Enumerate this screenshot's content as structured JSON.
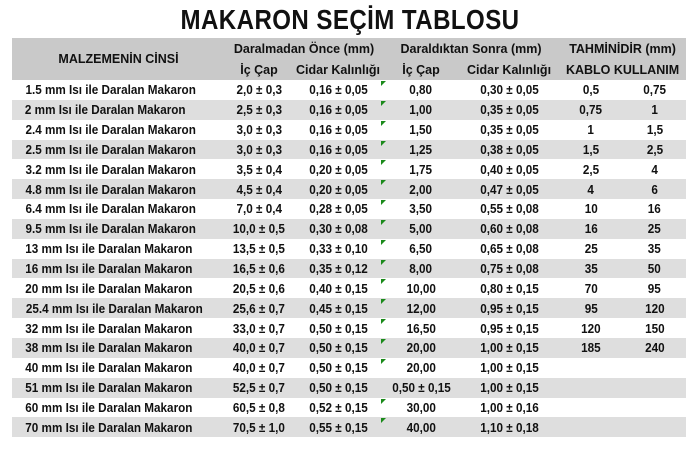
{
  "title": "MAKARON SEÇİM TABLOSU",
  "header": {
    "material": "MALZEMENİN CİNSİ",
    "before": "Daralmadan Önce (mm)",
    "after": "Daraldıktan Sonra (mm)",
    "estimate": "TAHMİNİDİR (mm)",
    "inner": "İç Çap",
    "wall": "Cidar Kalınlığı",
    "inner2": "İç Çap",
    "wall2": "Cidar Kalınlığı",
    "cable_usage": "KABLO KULLANIM"
  },
  "colors": {
    "header_bg": "#c9c9c9",
    "stripe_bg": "#dedede",
    "marker": "#1a8a1a"
  },
  "rows": [
    [
      "1.5 mm Isı ile Daralan Makaron",
      "2,0 ± 0,3",
      "0,16 ± 0,05",
      "0,80",
      "0,30 ± 0,05",
      "0,5",
      "0,75"
    ],
    [
      "2 mm Isı ile Daralan Makaron",
      "2,5 ± 0,3",
      "0,16 ± 0,05",
      "1,00",
      "0,35 ± 0,05",
      "0,75",
      "1"
    ],
    [
      "2.4 mm Isı ile Daralan Makaron",
      "3,0 ± 0,3",
      "0,16 ± 0,05",
      "1,50",
      "0,35 ± 0,05",
      "1",
      "1,5"
    ],
    [
      "2.5 mm Isı ile Daralan Makaron",
      "3,0 ± 0,3",
      "0,16 ± 0,05",
      "1,25",
      "0,38 ± 0,05",
      "1,5",
      "2,5"
    ],
    [
      "3.2 mm Isı ile Daralan Makaron",
      "3,5 ± 0,4",
      "0,20 ± 0,05",
      "1,75",
      "0,40 ± 0,05",
      "2,5",
      "4"
    ],
    [
      "4.8 mm Isı ile Daralan Makaron",
      "4,5 ± 0,4",
      "0,20 ± 0,05",
      "2,00",
      "0,47 ± 0,05",
      "4",
      "6"
    ],
    [
      "6.4 mm Isı ile Daralan Makaron",
      "7,0 ± 0,4",
      "0,28 ± 0,05",
      "3,50",
      "0,55 ± 0,08",
      "10",
      "16"
    ],
    [
      "9.5 mm Isı ile Daralan Makaron",
      "10,0 ± 0,5",
      "0,30 ± 0,08",
      "5,00",
      "0,60 ± 0,08",
      "16",
      "25"
    ],
    [
      "13 mm Isı ile Daralan Makaron",
      "13,5 ± 0,5",
      "0,33 ± 0,10",
      "6,50",
      "0,65 ± 0,08",
      "25",
      "35"
    ],
    [
      "16 mm Isı ile Daralan Makaron",
      "16,5 ± 0,6",
      "0,35 ± 0,12",
      "8,00",
      "0,75 ± 0,08",
      "35",
      "50"
    ],
    [
      "20 mm Isı ile Daralan Makaron",
      "20,5 ± 0,6",
      "0,40 ± 0,15",
      "10,00",
      "0,80 ± 0,15",
      "70",
      "95"
    ],
    [
      "25.4 mm Isı ile Daralan Makaron",
      "25,6 ± 0,7",
      "0,45 ± 0,15",
      "12,00",
      "0,95 ± 0,15",
      "95",
      "120"
    ],
    [
      "32 mm Isı ile Daralan Makaron",
      "33,0 ± 0,7",
      "0,50 ± 0,15",
      "16,50",
      "0,95 ± 0,15",
      "120",
      "150"
    ],
    [
      "38 mm Isı ile Daralan Makaron",
      "40,0 ± 0,7",
      "0,50 ± 0,15",
      "20,00",
      "1,00 ± 0,15",
      "185",
      "240"
    ],
    [
      "40 mm Isı ile Daralan Makaron",
      "40,0 ± 0,7",
      "0,50 ± 0,15",
      "20,00",
      "1,00 ± 0,15",
      "",
      ""
    ],
    [
      "51 mm Isı ile Daralan Makaron",
      "52,5 ± 0,7",
      "0,50 ± 0,15",
      "0,50 ± 0,15",
      "1,00 ± 0,15",
      "",
      ""
    ],
    [
      "60 mm Isı ile Daralan Makaron",
      "60,5 ± 0,8",
      "0,52 ± 0,15",
      "30,00",
      "1,00 ± 0,16",
      "",
      ""
    ],
    [
      "70 mm Isı ile Daralan Makaron",
      "70,5 ± 1,0",
      "0,55 ± 0,15",
      "40,00",
      "1,10 ± 0,18",
      "",
      ""
    ]
  ]
}
